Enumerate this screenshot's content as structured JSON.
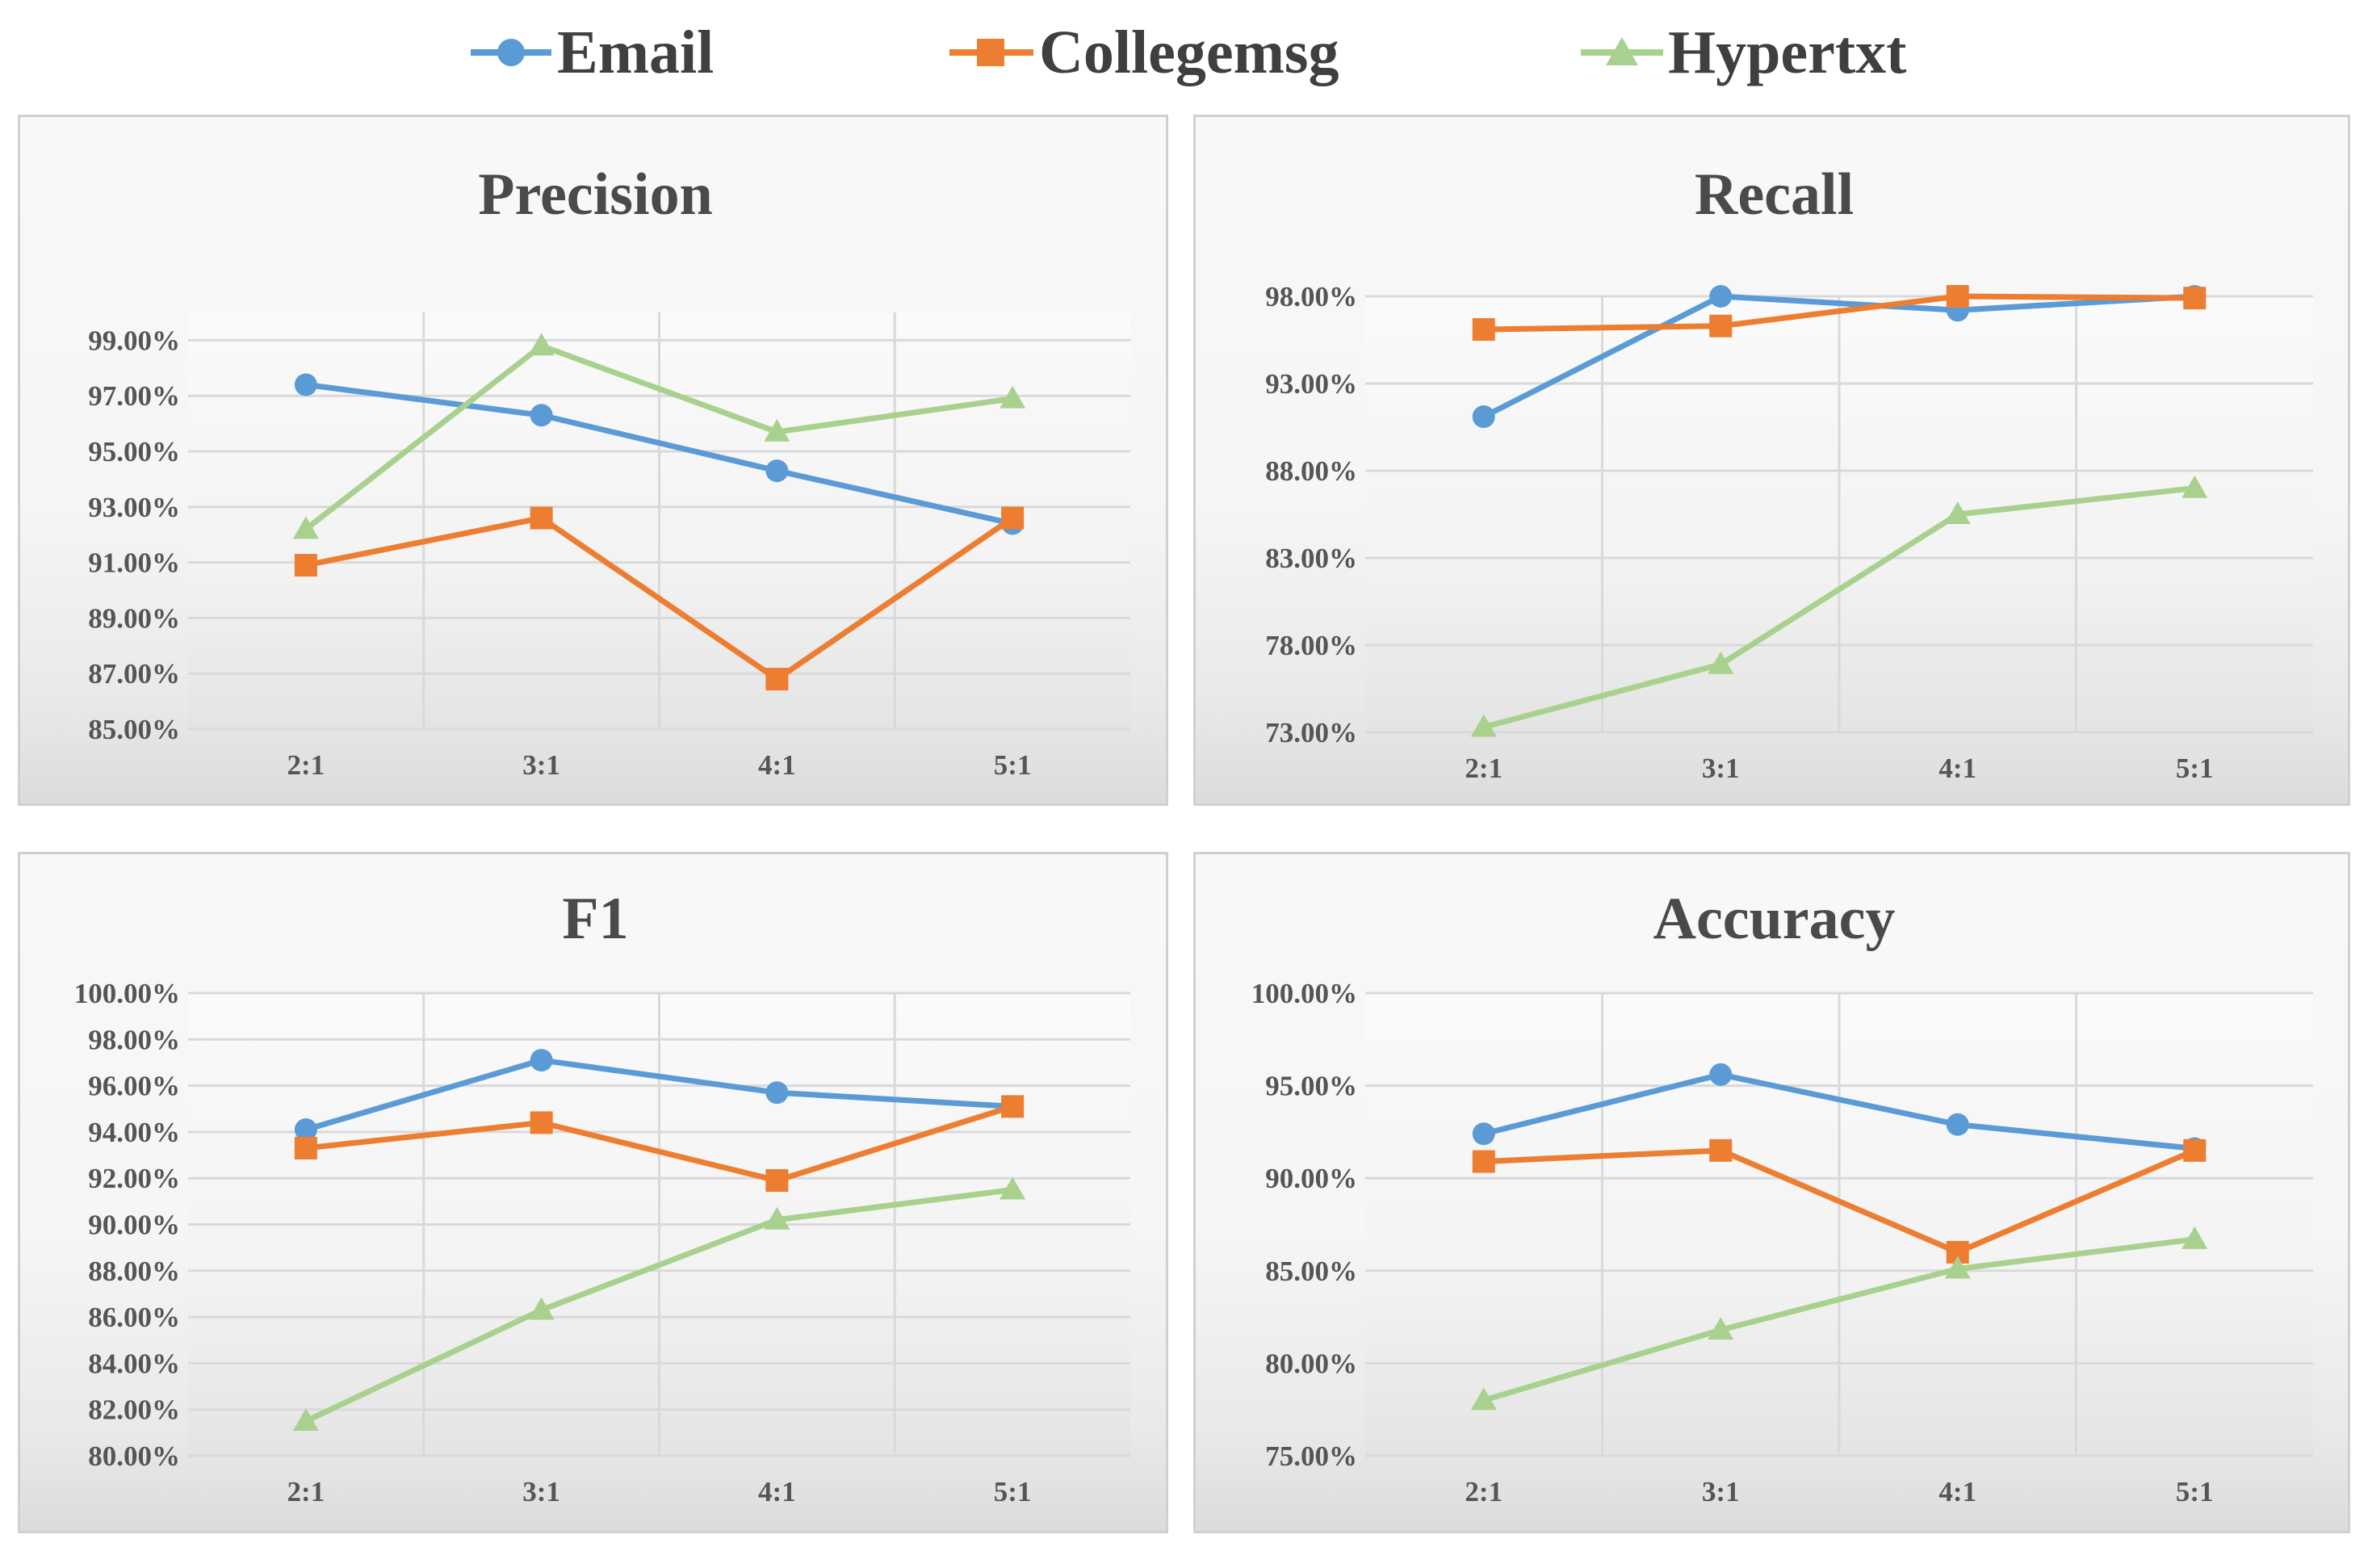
{
  "legend": [
    {
      "name": "Email",
      "color": "#5b9bd5",
      "marker": "circle"
    },
    {
      "name": "Collegemsg",
      "color": "#ed7d31",
      "marker": "square"
    },
    {
      "name": "Hypertxt",
      "color": "#a9d18e",
      "marker": "triangle"
    }
  ],
  "chart_data": [
    {
      "type": "line",
      "title": "Precision",
      "categories": [
        "2:1",
        "3:1",
        "4:1",
        "5:1"
      ],
      "ylim": [
        85,
        100
      ],
      "yticks": [
        85,
        87,
        89,
        91,
        93,
        95,
        97,
        99
      ],
      "ytick_labels": [
        "85.00%",
        "87.00%",
        "89.00%",
        "91.00%",
        "93.00%",
        "95.00%",
        "97.00%",
        "99.00%"
      ],
      "series": [
        {
          "name": "Email",
          "values": [
            97.4,
            96.3,
            94.3,
            92.4
          ]
        },
        {
          "name": "Collegemsg",
          "values": [
            90.9,
            92.6,
            86.8,
            92.6
          ]
        },
        {
          "name": "Hypertxt",
          "values": [
            92.2,
            98.8,
            95.7,
            96.9
          ]
        }
      ]
    },
    {
      "type": "line",
      "title": "Recall",
      "categories": [
        "2:1",
        "3:1",
        "4:1",
        "5:1"
      ],
      "ylim": [
        73,
        98
      ],
      "yticks": [
        73,
        78,
        83,
        88,
        93,
        98
      ],
      "ytick_labels": [
        "73.00%",
        "78.00%",
        "83.00%",
        "88.00%",
        "93.00%",
        "98.00%"
      ],
      "series": [
        {
          "name": "Email",
          "values": [
            91.1,
            98.0,
            97.2,
            98.0
          ]
        },
        {
          "name": "Collegemsg",
          "values": [
            96.1,
            96.3,
            98.0,
            97.9
          ]
        },
        {
          "name": "Hypertxt",
          "values": [
            73.3,
            76.9,
            85.5,
            87.0
          ]
        }
      ]
    },
    {
      "type": "line",
      "title": "F1",
      "categories": [
        "2:1",
        "3:1",
        "4:1",
        "5:1"
      ],
      "ylim": [
        80,
        100
      ],
      "yticks": [
        80,
        82,
        84,
        86,
        88,
        90,
        92,
        94,
        96,
        98,
        100
      ],
      "ytick_labels": [
        "80.00%",
        "82.00%",
        "84.00%",
        "86.00%",
        "88.00%",
        "90.00%",
        "92.00%",
        "94.00%",
        "96.00%",
        "98.00%",
        "100.00%"
      ],
      "series": [
        {
          "name": "Email",
          "values": [
            94.1,
            97.1,
            95.7,
            95.1
          ]
        },
        {
          "name": "Collegemsg",
          "values": [
            93.3,
            94.4,
            91.9,
            95.1
          ]
        },
        {
          "name": "Hypertxt",
          "values": [
            81.5,
            86.3,
            90.2,
            91.5
          ]
        }
      ]
    },
    {
      "type": "line",
      "title": "Accuracy",
      "categories": [
        "2:1",
        "3:1",
        "4:1",
        "5:1"
      ],
      "ylim": [
        75,
        100
      ],
      "yticks": [
        75,
        80,
        85,
        90,
        95,
        100
      ],
      "ytick_labels": [
        "75.00%",
        "80.00%",
        "85.00%",
        "90.00%",
        "95.00%",
        "100.00%"
      ],
      "series": [
        {
          "name": "Email",
          "values": [
            92.4,
            95.6,
            92.9,
            91.6
          ]
        },
        {
          "name": "Collegemsg",
          "values": [
            90.9,
            91.5,
            86.0,
            91.5
          ]
        },
        {
          "name": "Hypertxt",
          "values": [
            78.0,
            81.8,
            85.1,
            86.7
          ]
        }
      ]
    }
  ]
}
